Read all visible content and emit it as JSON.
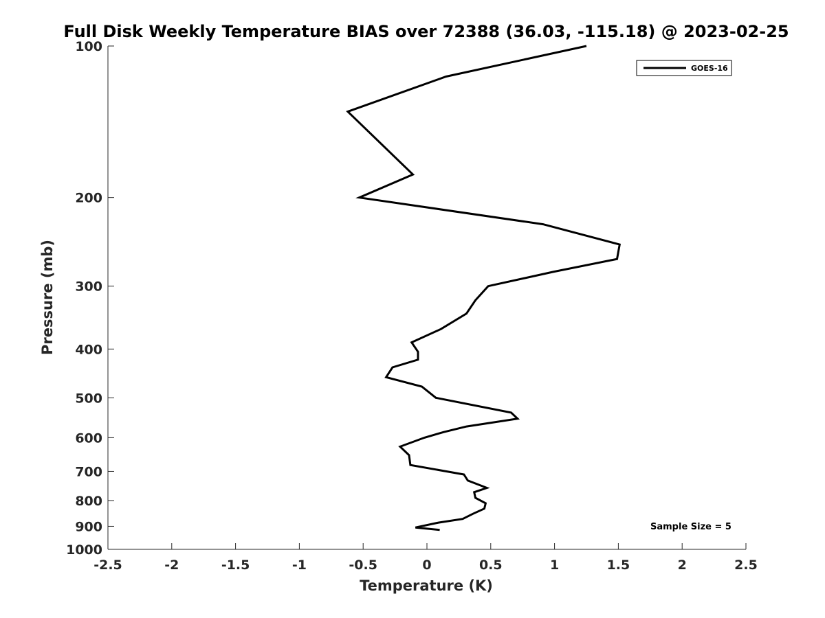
{
  "chart_data": {
    "type": "line",
    "title": "Full Disk Weekly Temperature BIAS over 72388 (36.03, -115.18) @ 2023-02-25",
    "xlabel": "Temperature (K)",
    "ylabel": "Pressure (mb)",
    "xlim": [
      -2.5,
      2.5
    ],
    "ylim": [
      100,
      1000
    ],
    "y_scale": "log",
    "y_reversed": true,
    "grid": false,
    "legend_position": "top-right",
    "x_ticks": [
      "-2.5",
      "-2",
      "-1.5",
      "-1",
      "-0.5",
      "0",
      "0.5",
      "1",
      "1.5",
      "2",
      "2.5"
    ],
    "x_tick_values": [
      -2.5,
      -2,
      -1.5,
      -1,
      -0.5,
      0,
      0.5,
      1,
      1.5,
      2,
      2.5
    ],
    "y_ticks": [
      "100",
      "200",
      "300",
      "400",
      "500",
      "600",
      "700",
      "800",
      "900",
      "1000"
    ],
    "y_tick_values": [
      100,
      200,
      300,
      400,
      500,
      600,
      700,
      800,
      900,
      1000
    ],
    "annotation": "Sample Size = 5",
    "series": [
      {
        "name": "GOES-16",
        "color": "#000000",
        "x": [
          1.25,
          0.15,
          -0.62,
          -0.11,
          -0.53,
          0.91,
          1.51,
          1.49,
          0.99,
          0.48,
          0.38,
          0.31,
          0.11,
          -0.12,
          -0.07,
          -0.07,
          -0.27,
          -0.32,
          -0.04,
          0.07,
          0.66,
          0.71,
          0.31,
          0.13,
          -0.02,
          -0.21,
          -0.14,
          -0.13,
          0.29,
          0.32,
          0.47,
          0.37,
          0.38,
          0.46,
          0.45,
          0.36,
          0.28,
          0.09,
          -0.09,
          0.1
        ],
        "y": [
          100,
          115,
          135,
          180,
          200,
          226,
          248,
          265,
          281,
          300,
          320,
          340,
          365,
          388,
          405,
          420,
          435,
          455,
          475,
          500,
          535,
          550,
          570,
          585,
          600,
          625,
          650,
          680,
          710,
          730,
          755,
          770,
          790,
          810,
          830,
          850,
          870,
          885,
          905,
          915
        ]
      }
    ]
  }
}
